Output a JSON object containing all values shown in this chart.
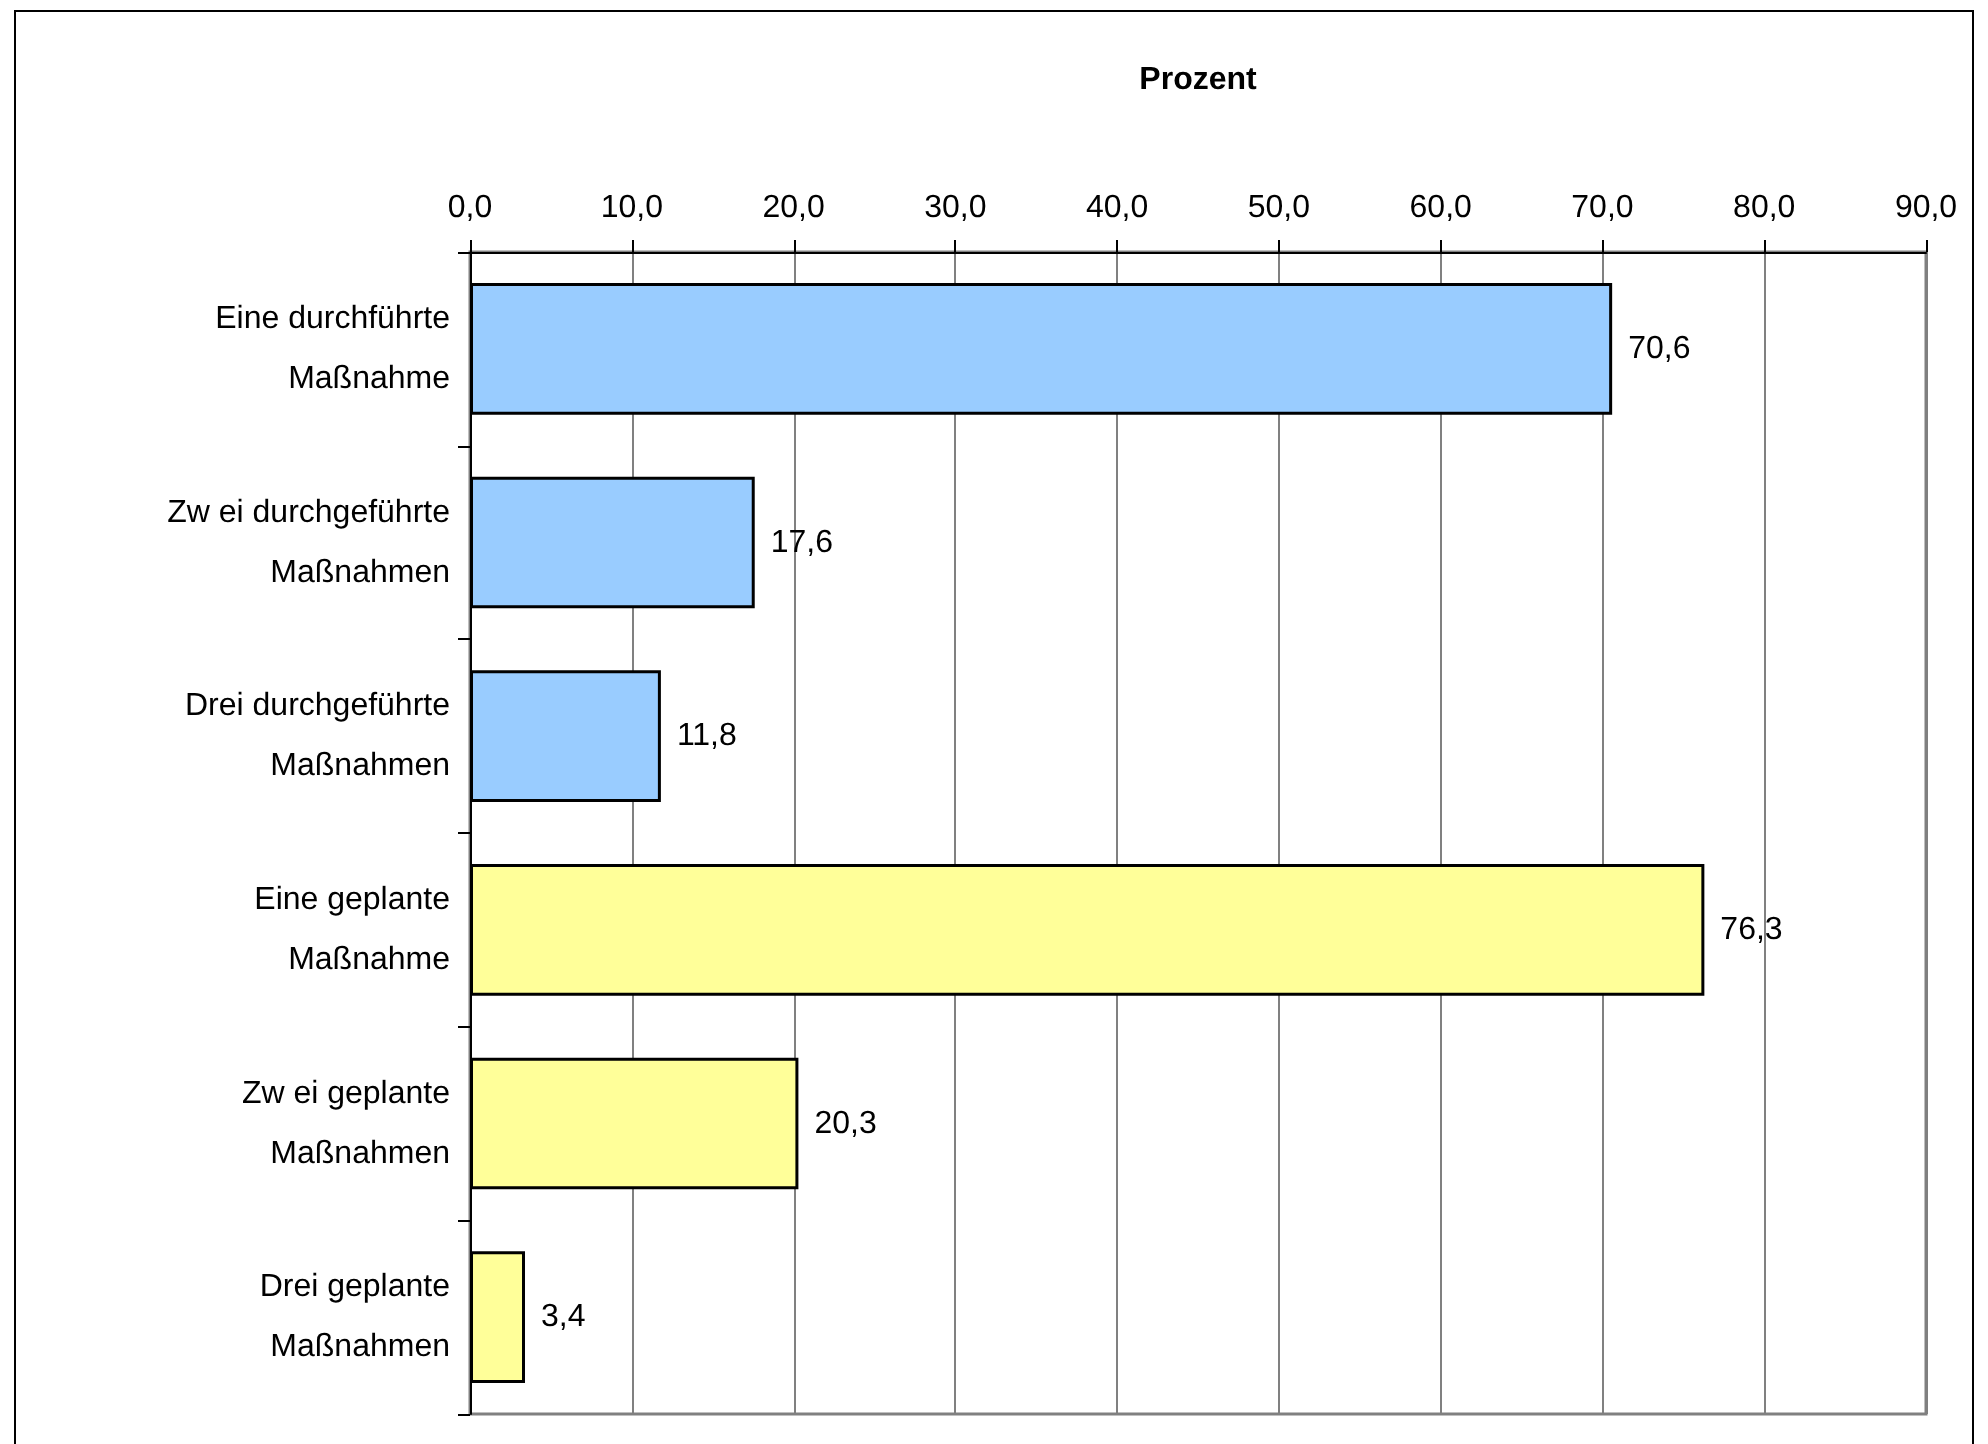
{
  "chart_data": {
    "type": "bar",
    "orientation": "horizontal",
    "xlabel": "Prozent",
    "categories": [
      "Eine durchführte\nMaßnahme",
      "Zw ei durchgeführte\nMaßnahmen",
      "Drei durchgeführte\nMaßnahmen",
      "Eine geplante\nMaßnahme",
      "Zw ei geplante\nMaßnahmen",
      "Drei geplante\nMaßnahmen"
    ],
    "values": [
      70.6,
      17.6,
      11.8,
      76.3,
      20.3,
      3.4
    ],
    "colors": [
      "#99ccff",
      "#99ccff",
      "#99ccff",
      "#ffff99",
      "#ffff99",
      "#ffff99"
    ],
    "value_labels": [
      "70,6",
      "17,6",
      "11,8",
      "76,3",
      "20,3",
      "3,4"
    ],
    "xlim": [
      0,
      90
    ],
    "xticks": [
      {
        "value": 0,
        "label": "0,0"
      },
      {
        "value": 10,
        "label": "10,0"
      },
      {
        "value": 20,
        "label": "20,0"
      },
      {
        "value": 30,
        "label": "30,0"
      },
      {
        "value": 40,
        "label": "40,0"
      },
      {
        "value": 50,
        "label": "50,0"
      },
      {
        "value": 60,
        "label": "60,0"
      },
      {
        "value": 70,
        "label": "70,0"
      },
      {
        "value": 80,
        "label": "80,0"
      },
      {
        "value": 90,
        "label": "90,0"
      }
    ],
    "grid": "x"
  }
}
